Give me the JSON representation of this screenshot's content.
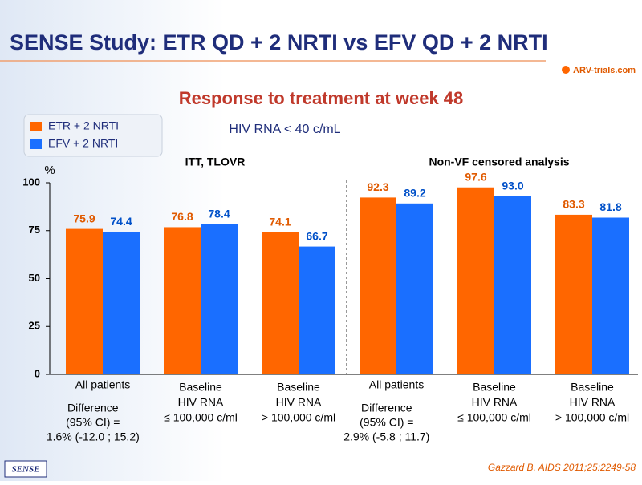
{
  "header": {
    "title": "SENSE Study: ETR QD + 2 NRTI vs EFV QD + 2 NRTI",
    "logo": "ARV-trials.com"
  },
  "chart_data": {
    "type": "bar",
    "title": "Response to treatment at week 48",
    "subtitle": "HIV RNA < 40 c/mL",
    "ylabel": "%",
    "group_labels": [
      "ITT, TLOVR",
      "Non-VF censored analysis"
    ],
    "categories": [
      [
        "All patients"
      ],
      [
        "Baseline",
        "HIV RNA",
        "≤ 100,000 c/ml"
      ],
      [
        "Baseline",
        "HIV RNA",
        "> 100,000 c/ml"
      ],
      [
        "All patients"
      ],
      [
        "Baseline",
        "HIV RNA",
        "≤ 100,000 c/ml"
      ],
      [
        "Baseline",
        "HIV RNA",
        "> 100,000 c/ml"
      ]
    ],
    "series": [
      {
        "name": "ETR + 2 NRTI",
        "color": "#ff6600",
        "values": [
          75.9,
          76.8,
          74.1,
          92.3,
          97.6,
          83.3
        ],
        "value_labels": [
          "75.9",
          "76.8",
          "74.1",
          "92.3",
          "97.6",
          "83.3"
        ]
      },
      {
        "name": "EFV + 2 NRTI",
        "color": "#1a6fff",
        "values": [
          74.4,
          78.4,
          66.7,
          89.2,
          93.0,
          81.8
        ],
        "value_labels": [
          "74.4",
          "78.4",
          "66.7",
          "89.2",
          "93.0",
          "81.8"
        ]
      }
    ],
    "ylim": [
      0,
      100
    ],
    "yticks": [
      0,
      25,
      50,
      75,
      100
    ],
    "annotations": [
      [
        "Difference",
        "(95% CI) =",
        "1.6% (-12.0 ; 15.2)"
      ],
      [
        "Difference",
        "(95% CI) =",
        "2.9% (-5.8 ; 11.7)"
      ]
    ]
  },
  "footer": {
    "badge": "SENSE",
    "citation": "Gazzard B. AIDS 2011;25:2249-58"
  }
}
